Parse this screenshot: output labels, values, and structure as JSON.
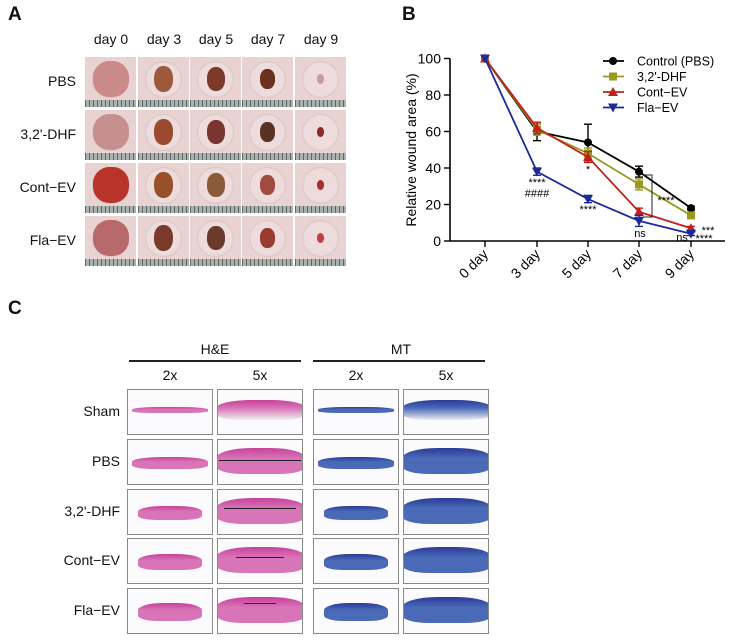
{
  "panel_a": {
    "label": "A",
    "columns": [
      "day 0",
      "day 3",
      "day 5",
      "day 7",
      "day 9"
    ],
    "rows": [
      "PBS",
      "3,2'-DHF",
      "Cont−EV",
      "Fla−EV"
    ]
  },
  "panel_b": {
    "label": "B"
  },
  "chart_data": {
    "type": "line",
    "title": "",
    "xlabel": "",
    "ylabel": "Relative wound area (%)",
    "categories": [
      "0 day",
      "3 day",
      "5 day",
      "7 day",
      "9 day"
    ],
    "ylim": [
      0,
      100
    ],
    "yticks": [
      "0",
      "20",
      "40",
      "60",
      "80",
      "100"
    ],
    "grid": false,
    "legend_position": "top-right",
    "series": [
      {
        "name": "Control (PBS)",
        "color": "#000000",
        "marker": "circle",
        "values": [
          100,
          60,
          54,
          38,
          18
        ],
        "errors": [
          0,
          5,
          10,
          3,
          1
        ]
      },
      {
        "name": "3,2'-DHF",
        "color": "#9a9a1e",
        "marker": "square",
        "values": [
          100,
          61,
          48,
          31,
          14
        ],
        "errors": [
          0,
          3,
          3,
          3,
          1
        ]
      },
      {
        "name": "Cont−EV",
        "color": "#c0201c",
        "marker": "triangle-up",
        "values": [
          100,
          62,
          46,
          16,
          7
        ],
        "errors": [
          0,
          3,
          3,
          2,
          1
        ]
      },
      {
        "name": "Fla−EV",
        "color": "#1c2a9a",
        "marker": "triangle-down",
        "values": [
          100,
          38,
          23,
          11,
          4
        ],
        "errors": [
          0,
          2,
          2,
          3,
          1
        ]
      }
    ],
    "annotations": {
      "d3_stars": "****",
      "d3_hash": "####",
      "d5_cont": "*",
      "d5_fla": "****",
      "d7_ns": "ns",
      "d7_bracket": "****",
      "d9_ns": "ns",
      "d9_top": "***",
      "d9_bottom": "****"
    }
  },
  "panel_c": {
    "label": "C",
    "stains": [
      "H&E",
      "MT"
    ],
    "magnifications": [
      "2x",
      "5x",
      "2x",
      "5x"
    ],
    "rows": [
      "Sham",
      "PBS",
      "3,2'-DHF",
      "Cont−EV",
      "Fla−EV"
    ]
  }
}
